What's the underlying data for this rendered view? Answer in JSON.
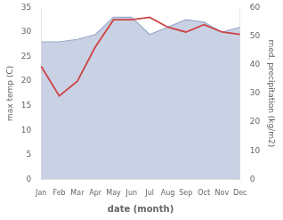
{
  "chart_data": {
    "type": "line",
    "xlabel": "date (month)",
    "ylabel": "max temp (C)",
    "y2label": "med. precipitation (kg/m2)",
    "categories": [
      "Jan",
      "Feb",
      "Mar",
      "Apr",
      "May",
      "Jun",
      "Jul",
      "Aug",
      "Sep",
      "Oct",
      "Nov",
      "Dec"
    ],
    "series": [
      {
        "type": "area",
        "color": "#99a8cc",
        "values": [
          28.0,
          28.0,
          28.5,
          29.5,
          33.0,
          33.0,
          29.5,
          31.0,
          32.5,
          32.0,
          30.0,
          31.0
        ]
      },
      {
        "type": "line",
        "color": "#cc4444",
        "values": [
          23.0,
          17.0,
          20.0,
          27.0,
          32.5,
          32.5,
          33.0,
          31.0,
          30.0,
          31.5,
          30.0,
          29.5
        ]
      }
    ],
    "ylim": [
      0,
      35
    ],
    "yticks": [
      0,
      5,
      10,
      15,
      20,
      25,
      30,
      35
    ],
    "y2lim": [
      0,
      60
    ],
    "y2ticks": [
      0,
      10,
      20,
      30,
      40,
      50,
      60
    ],
    "grid": false
  }
}
